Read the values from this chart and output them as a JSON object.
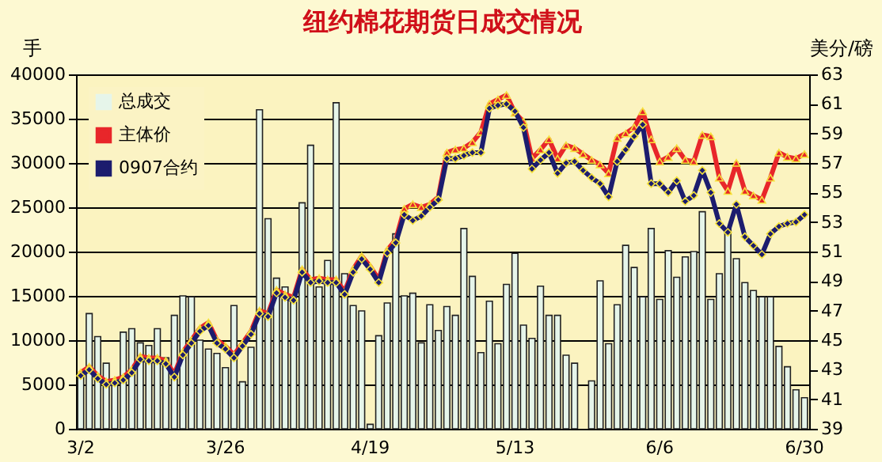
{
  "chart_data": {
    "type": "bar",
    "title": "纽约棉花期货日成交情况",
    "ylabel": "手",
    "y2label": "美分/磅",
    "categories": [
      "3/2",
      null,
      null,
      null,
      null,
      null,
      null,
      null,
      null,
      null,
      null,
      null,
      null,
      null,
      null,
      null,
      null,
      "3/26",
      null,
      null,
      null,
      null,
      null,
      null,
      null,
      null,
      null,
      null,
      null,
      null,
      null,
      null,
      null,
      null,
      "4/19",
      null,
      null,
      null,
      null,
      null,
      null,
      null,
      null,
      null,
      null,
      null,
      null,
      null,
      null,
      null,
      null,
      "5/13",
      null,
      null,
      null,
      null,
      null,
      null,
      null,
      null,
      null,
      null,
      null,
      null,
      null,
      null,
      null,
      null,
      "6/6",
      null,
      null,
      null,
      null,
      null,
      null,
      null,
      null,
      null,
      null,
      null,
      null,
      null,
      null,
      null,
      null,
      "6/30"
    ],
    "series": [
      {
        "name": "总成交",
        "color": "#e6f5ea",
        "values": [
          6200,
          13000,
          10400,
          7400,
          5000,
          10900,
          11300,
          9700,
          9400,
          11300,
          8000,
          12800,
          15000,
          14900,
          10000,
          9000,
          8500,
          6900,
          13900,
          5300,
          9200,
          36000,
          23700,
          17000,
          16000,
          14500,
          25500,
          32000,
          16000,
          19000,
          36800,
          17500,
          13900,
          13300,
          500,
          10500,
          14200,
          22000,
          15000,
          15300,
          9700,
          14000,
          11100,
          13800,
          12800,
          22600,
          17200,
          8600,
          14400,
          9600,
          16300,
          19800,
          11700,
          10200,
          16100,
          12800,
          12800,
          8300,
          7400,
          null,
          5400,
          16700,
          9600,
          14000,
          20700,
          18200,
          14900,
          22600,
          14600,
          20100,
          17100,
          19400,
          20000,
          24500,
          14600,
          17500,
          22600,
          19200,
          16500,
          15600,
          14900,
          14900,
          9300,
          7000,
          4400,
          3500
        ]
      },
      {
        "name": "主体价",
        "type": "line",
        "axis": "y2",
        "color": "#e8262a",
        "marker": "triangle",
        "values": [
          42.8,
          43.2,
          42.6,
          42.2,
          42.3,
          42.5,
          43.0,
          43.9,
          43.8,
          43.8,
          43.6,
          42.7,
          44.2,
          45.0,
          45.8,
          46.2,
          45.0,
          44.6,
          44.0,
          44.8,
          45.6,
          47.0,
          46.8,
          48.4,
          48.1,
          47.9,
          49.8,
          49.1,
          49.2,
          49.1,
          49.1,
          48.3,
          49.8,
          50.7,
          50.0,
          49.1,
          51.1,
          51.8,
          53.9,
          54.2,
          54.0,
          54.2,
          54.7,
          57.7,
          57.9,
          58.0,
          58.4,
          59.1,
          61.0,
          61.3,
          61.6,
          60.4,
          59.8,
          57.3,
          57.9,
          58.6,
          57.3,
          58.2,
          58.0,
          57.6,
          57.2,
          56.9,
          56.3,
          58.7,
          59.0,
          59.4,
          60.5,
          58.6,
          57.1,
          57.4,
          58.0,
          57.2,
          57.1,
          58.9,
          58.8,
          56.0,
          55.1,
          57.0,
          55.1,
          54.8,
          54.5,
          56.0,
          57.7,
          57.4,
          57.3,
          57.6
        ]
      },
      {
        "name": "0907合约",
        "type": "line",
        "axis": "y2",
        "color": "#1c1c6e",
        "marker": "diamond",
        "values": [
          42.6,
          43.0,
          42.4,
          42.0,
          42.1,
          42.3,
          42.8,
          43.7,
          43.6,
          43.6,
          43.4,
          42.5,
          44.0,
          44.8,
          45.6,
          46.0,
          44.8,
          44.4,
          43.8,
          44.6,
          45.4,
          46.8,
          46.6,
          48.2,
          47.9,
          47.7,
          49.6,
          48.9,
          49.0,
          48.9,
          48.9,
          48.1,
          49.6,
          50.5,
          49.8,
          48.9,
          50.9,
          51.6,
          53.5,
          53.1,
          53.4,
          54.0,
          54.5,
          57.3,
          57.3,
          57.5,
          57.7,
          57.7,
          60.7,
          60.9,
          61.0,
          60.5,
          59.4,
          56.6,
          57.2,
          57.7,
          56.3,
          57.0,
          57.1,
          56.5,
          56.0,
          55.6,
          54.7,
          57.1,
          57.9,
          58.8,
          59.6,
          55.6,
          55.6,
          55.0,
          55.8,
          54.4,
          54.8,
          56.5,
          55.0,
          52.9,
          52.3,
          54.2,
          52.0,
          51.4,
          50.8,
          52.2,
          52.7,
          52.9,
          53.0,
          53.5
        ]
      }
    ],
    "ylim": [
      0,
      40000
    ],
    "yticks": [
      0,
      5000,
      10000,
      15000,
      20000,
      25000,
      30000,
      35000,
      40000
    ],
    "y2lim": [
      39,
      63
    ],
    "y2ticks": [
      39,
      41,
      43,
      45,
      47,
      49,
      51,
      53,
      55,
      57,
      59,
      61,
      63
    ],
    "grid": "y",
    "legend": "top left"
  }
}
